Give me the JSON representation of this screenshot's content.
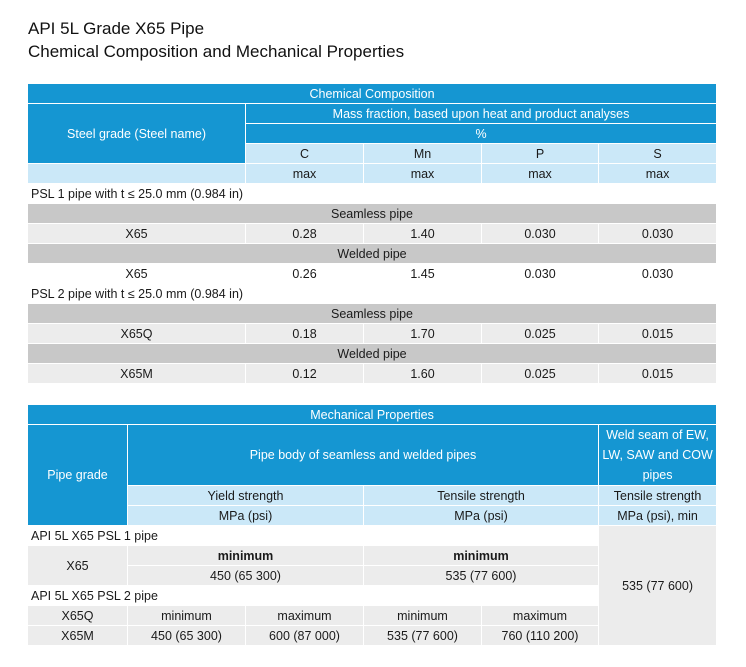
{
  "title": {
    "line1": "API 5L Grade X65 Pipe",
    "line2": "Chemical Composition and Mechanical Properties"
  },
  "colors": {
    "header": "#1596d2",
    "light_blue": "#cbe8f8",
    "gray_band": "#c8c8c8",
    "light_gray": "#ececec"
  },
  "chemical": {
    "title": "Chemical Composition",
    "grade_header": "Steel grade (Steel name)",
    "mass_fraction": "Mass fraction, based upon heat and product analyses",
    "unit": "%",
    "elements": [
      "C",
      "Mn",
      "P",
      "S"
    ],
    "limit": "max",
    "psl1_label": "PSL 1 pipe with t ≤ 25.0 mm (0.984 in)",
    "psl2_label": "PSL 2 pipe with t ≤ 25.0 mm (0.984 in)",
    "seamless_label": "Seamless pipe",
    "welded_label": "Welded pipe",
    "rows": {
      "psl1_seamless": {
        "grade": "X65",
        "values": [
          "0.28",
          "1.40",
          "0.030",
          "0.030"
        ]
      },
      "psl1_welded": {
        "grade": "X65",
        "values": [
          "0.26",
          "1.45",
          "0.030",
          "0.030"
        ]
      },
      "psl2_seamless": {
        "grade": "X65Q",
        "values": [
          "0.18",
          "1.70",
          "0.025",
          "0.015"
        ]
      },
      "psl2_welded": {
        "grade": "X65M",
        "values": [
          "0.12",
          "1.60",
          "0.025",
          "0.015"
        ]
      }
    }
  },
  "mechanical": {
    "title": "Mechanical Properties",
    "grade_header": "Pipe grade",
    "body_header": "Pipe body of seamless and welded pipes",
    "weld_header": "Weld seam of EW, LW, SAW and COW pipes",
    "yield": "Yield strength",
    "tensile": "Tensile strength",
    "unit": "MPa (psi)",
    "unit_min": "MPa (psi), min",
    "psl1_label": "API 5L X65 PSL 1 pipe",
    "psl2_label": "API 5L X65 PSL 2 pipe",
    "minimum": "minimum",
    "maximum": "maximum",
    "psl1": {
      "grade": "X65",
      "yield_min": "450 (65 300)",
      "tensile_min": "535 (77 600)"
    },
    "psl2": {
      "grade1": "X65Q",
      "grade2": "X65M",
      "yield_min": "450 (65 300)",
      "yield_max": "600 (87 000)",
      "tensile_min": "535 (77 600)",
      "tensile_max": "760 (110 200)"
    },
    "weld_value": "535 (77 600)"
  }
}
